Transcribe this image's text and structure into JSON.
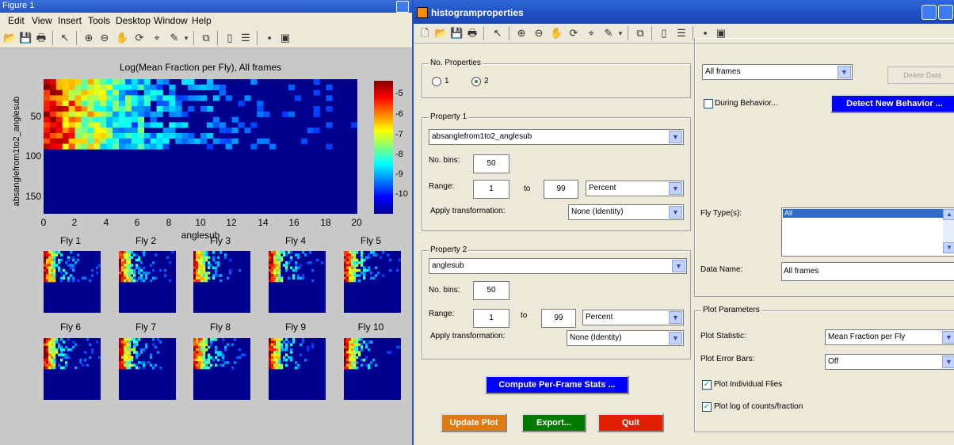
{
  "figure1": {
    "title": "Figure 1",
    "menu": [
      "Edit",
      "View",
      "Insert",
      "Tools",
      "Desktop",
      "Window",
      "Help"
    ],
    "toolbar_icons": [
      "open-icon",
      "save-icon",
      "print-icon",
      "pointer-icon",
      "zoom-in-icon",
      "zoom-out-icon",
      "pan-icon",
      "rotate-icon",
      "data-cursor-icon",
      "brush-icon",
      "link-icon",
      "colorbar-icon",
      "legend-icon",
      "hide-tools-icon",
      "show-tools-icon"
    ],
    "main_plot": {
      "title": "Log(Mean Fraction per Fly), All frames",
      "xlabel": "anglesub",
      "ylabel": "absanglefrom1to2_anglesub",
      "yticks": [
        "50",
        "100",
        "150"
      ],
      "xticks": [
        "0",
        "2",
        "4",
        "6",
        "8",
        "10",
        "12",
        "14",
        "16",
        "18",
        "20"
      ],
      "colorbar_ticks": [
        "-5",
        "-6",
        "-7",
        "-8",
        "-9",
        "-10"
      ]
    },
    "fly_titles": [
      "Fly 1",
      "Fly 2",
      "Fly 3",
      "Fly 4",
      "Fly 5",
      "Fly 6",
      "Fly 7",
      "Fly 8",
      "Fly 9",
      "Fly 10"
    ]
  },
  "histprops": {
    "title": "histogramproperties",
    "no_properties": {
      "label": "No. Properties",
      "opt1": "1",
      "opt2": "2",
      "selected": "2"
    },
    "property1": {
      "label": "Property 1",
      "field": "absanglefrom1to2_anglesub",
      "nbins_label": "No. bins:",
      "nbins": "50",
      "range_label": "Range:",
      "range_min": "1",
      "to_label": "to",
      "range_max": "99",
      "range_unit": "Percent",
      "transform_label": "Apply transformation:",
      "transform": "None (Identity)"
    },
    "property2": {
      "label": "Property 2",
      "field": "anglesub",
      "nbins_label": "No. bins:",
      "nbins": "50",
      "range_label": "Range:",
      "range_min": "1",
      "to_label": "to",
      "range_max": "99",
      "range_unit": "Percent",
      "transform_label": "Apply transformation:",
      "transform": "None (Identity)"
    },
    "data_select": "All frames",
    "delete_data": "Delete Data",
    "during_behavior": "During Behavior...",
    "detect_behavior": "Detect New Behavior ...",
    "fly_types_label": "Fly Type(s):",
    "fly_types": [
      "All"
    ],
    "data_name_label": "Data Name:",
    "data_name": "All frames",
    "plot_params": {
      "label": "Plot Parameters",
      "statistic_label": "Plot Statistic:",
      "statistic": "Mean Fraction per Fly",
      "error_bars_label": "Plot Error Bars:",
      "error_bars": "Off",
      "individual_flies": "Plot Individual Flies",
      "log_counts": "Plot log of counts/fraction"
    },
    "compute_btn": "Compute Per-Frame Stats ...",
    "update_btn": "Update Plot",
    "export_btn": "Export...",
    "quit_btn": "Quit",
    "colors": {
      "compute": "#0000ff",
      "update": "#e07a10",
      "export": "#007a00",
      "quit": "#e02000",
      "detect": "#0000ff"
    }
  }
}
